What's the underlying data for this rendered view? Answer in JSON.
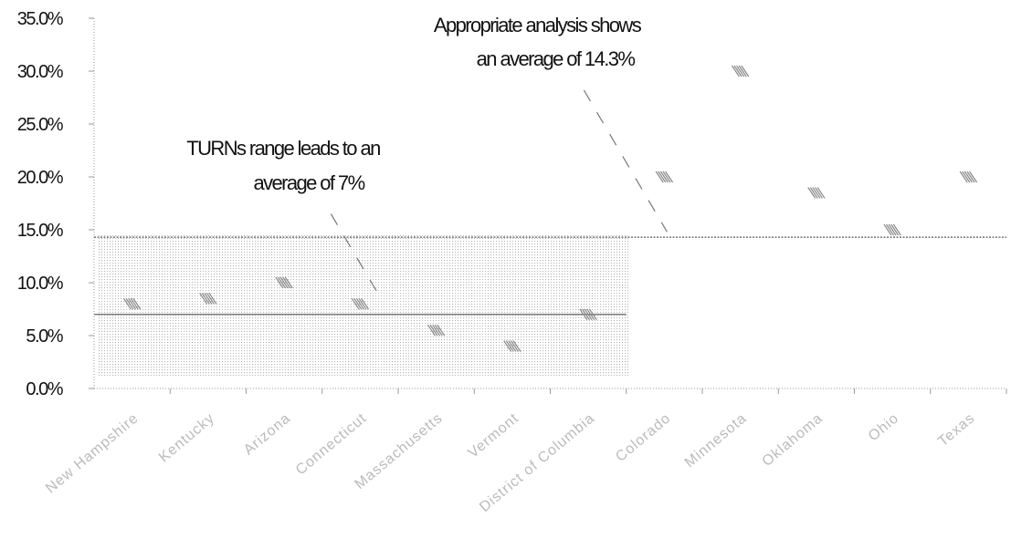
{
  "chart_data": {
    "type": "scatter",
    "title": "",
    "xlabel": "",
    "ylabel": "",
    "categories": [
      "New Hampshire",
      "Kentucky",
      "Arizona",
      "Connecticut",
      "Massachusetts",
      "Vermont",
      "District of Columbia",
      "Colorado",
      "Minnesota",
      "Oklahoma",
      "Ohio",
      "Texas"
    ],
    "values": [
      8.0,
      8.5,
      10.0,
      8.0,
      5.5,
      4.0,
      7.0,
      20.0,
      30.0,
      18.5,
      15.0,
      20.0
    ],
    "ylim": [
      0,
      35
    ],
    "yticks": [
      "0.0%",
      "5.0%",
      "10.0%",
      "15.0%",
      "20.0%",
      "25.0%",
      "30.0%",
      "35.0%"
    ],
    "grid": false,
    "legend": "none",
    "turns_range": {
      "count": 7,
      "average": 7
    },
    "overall": {
      "average": 14.3
    },
    "annotations": {
      "turns": {
        "line1": "TURNs range leads to an",
        "line2": "average of 7%"
      },
      "appropriate": {
        "line1": "Appropriate analysis shows",
        "line2": "an average of 14.3%"
      }
    },
    "colors": {
      "text": "#111111",
      "axis": "#9a9a9a",
      "marker": "#888888",
      "shade": "#c8c8c8",
      "category_label": "#bbbbbb"
    }
  }
}
